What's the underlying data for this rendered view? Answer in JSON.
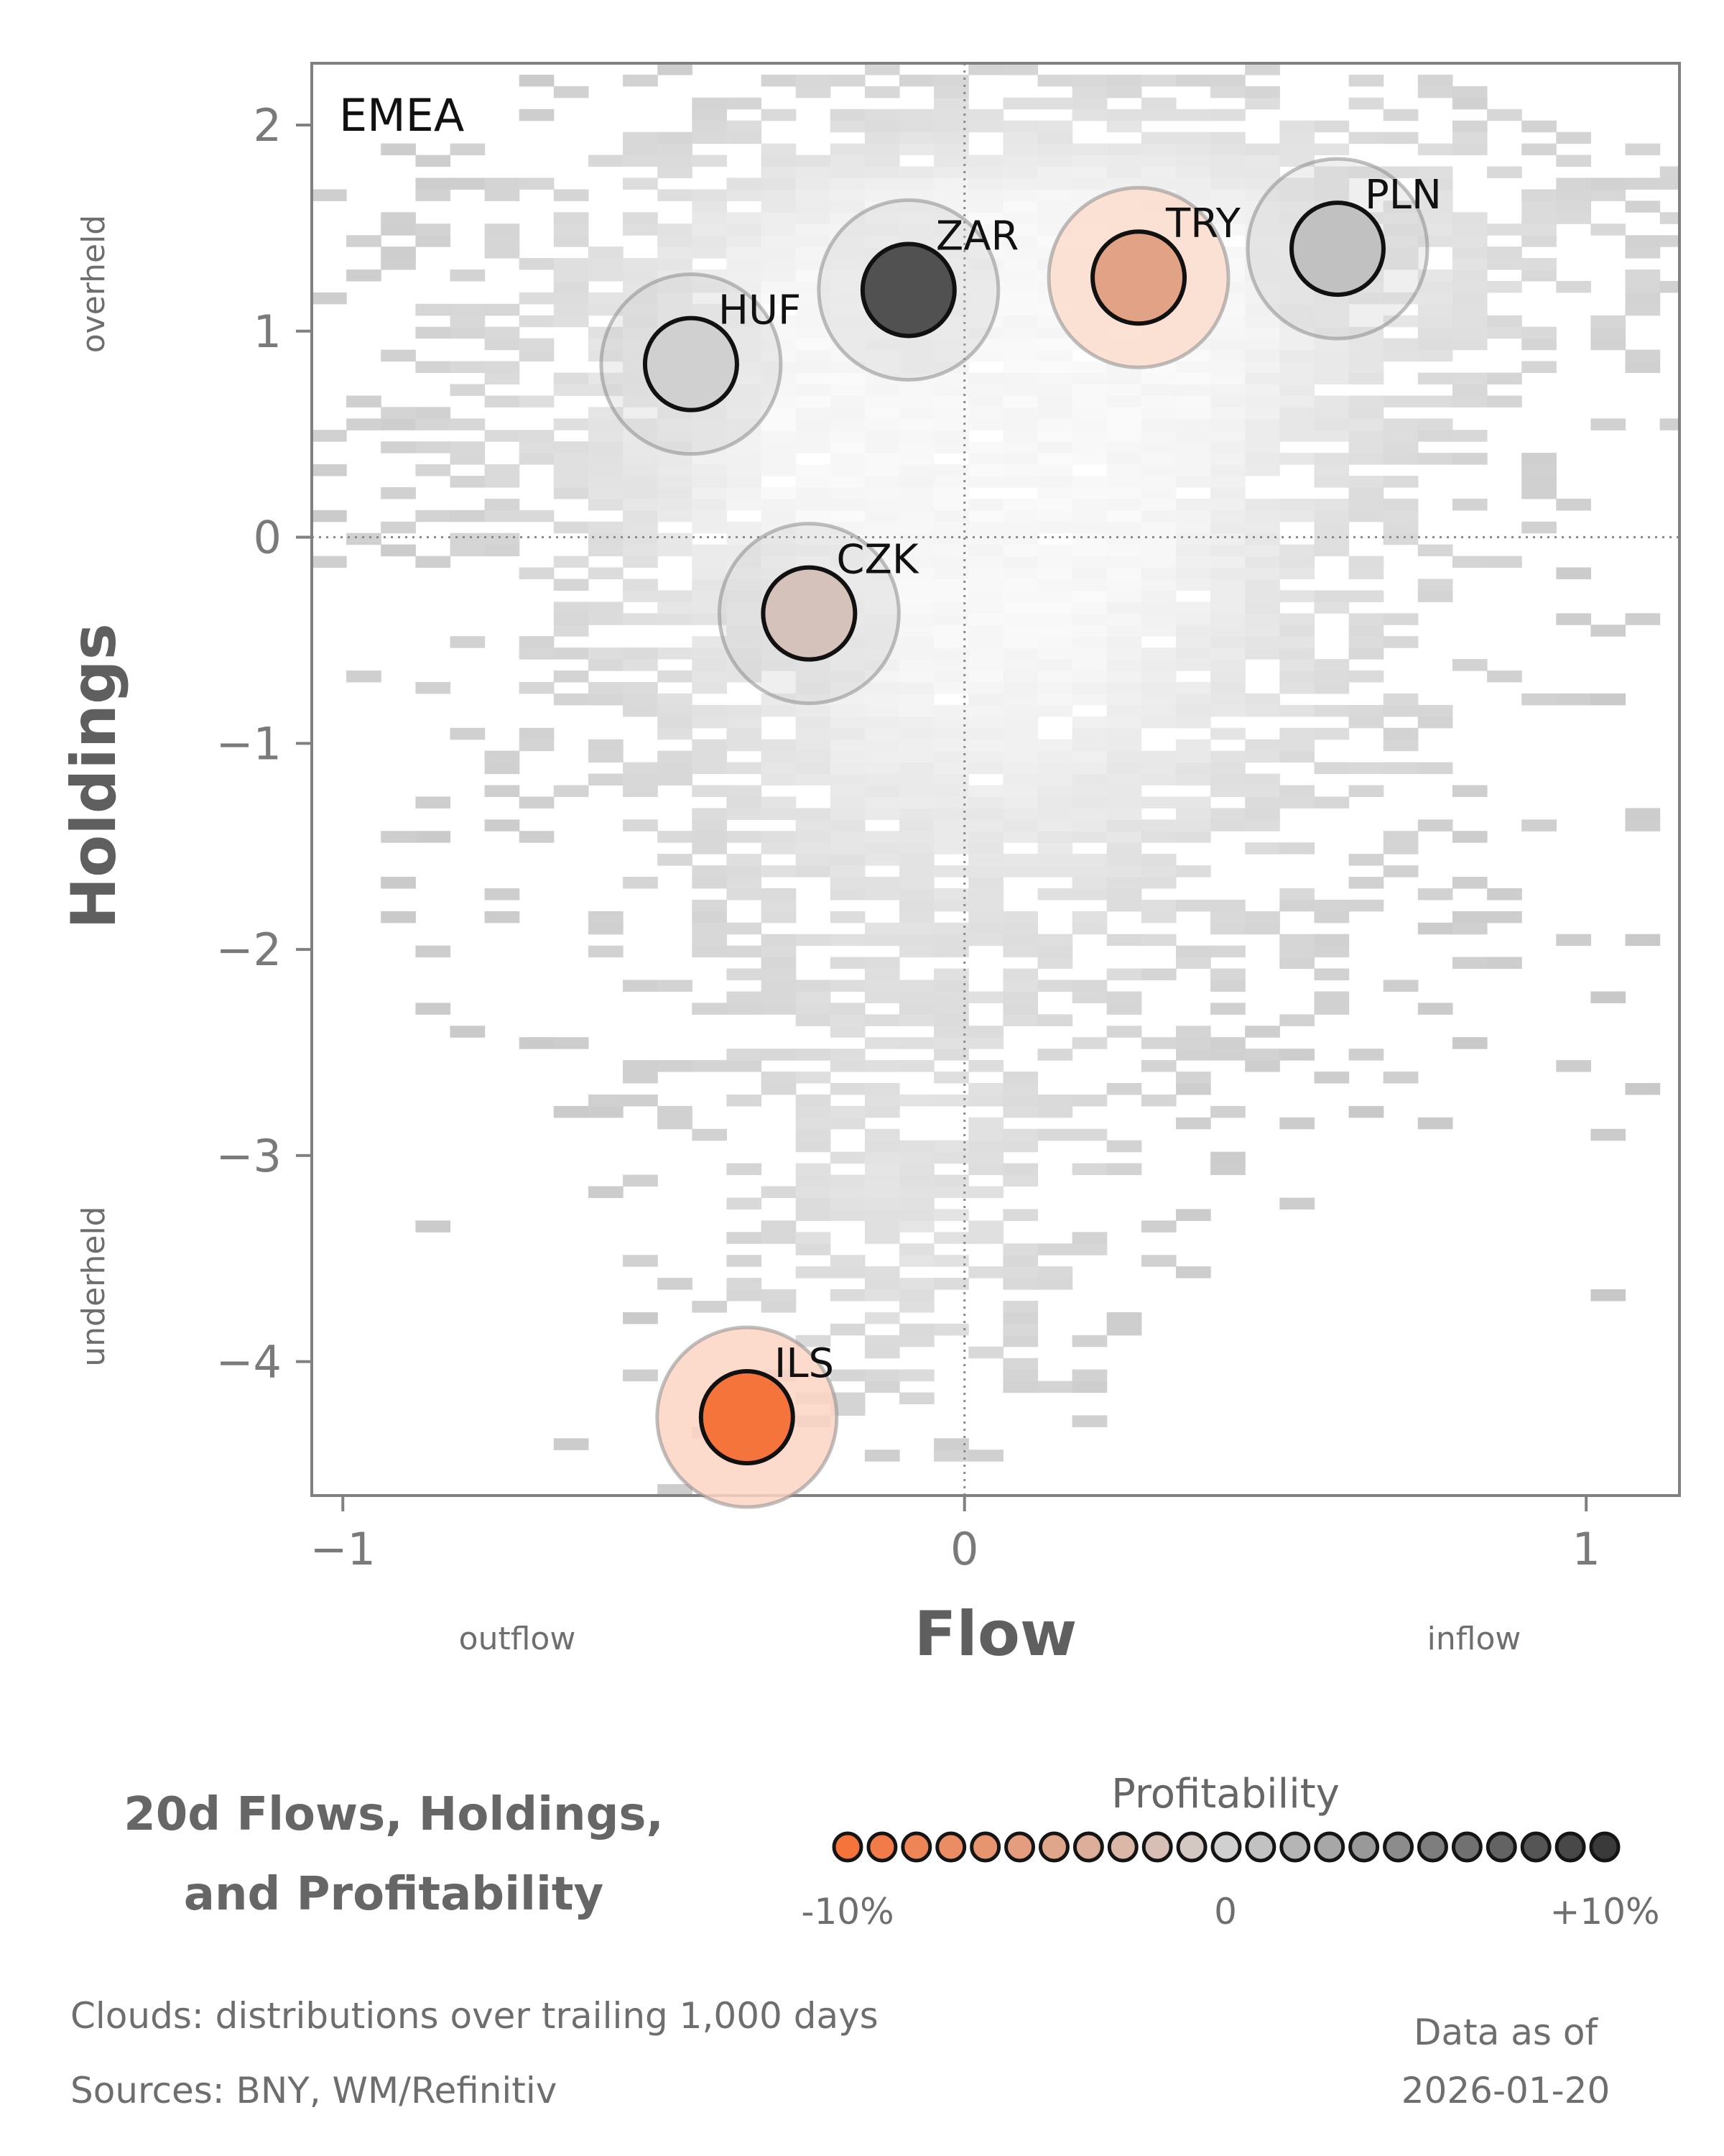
{
  "chart_data": {
    "type": "scatter",
    "title": "20d Flows, Holdings, and Profitability",
    "title_lines": [
      "20d Flows, Holdings,",
      "and Profitability"
    ],
    "panel_label": "EMEA",
    "xlabel": "Flow",
    "ylabel": "Holdings",
    "x_notes": {
      "left": "outflow",
      "right": "inflow"
    },
    "y_notes": {
      "top": "overheld",
      "bottom": "underheld"
    },
    "xlim": [
      -1.05,
      1.15
    ],
    "ylim": [
      -4.65,
      2.3
    ],
    "x_ticks": [
      -1,
      0,
      1
    ],
    "x_tick_labels": [
      "−1",
      "0",
      "1"
    ],
    "y_ticks": [
      2,
      1,
      0,
      -1,
      -2,
      -3,
      -4
    ],
    "y_tick_labels": [
      "2",
      "1",
      "0",
      "−1",
      "−2",
      "−3",
      "−4"
    ],
    "reference_lines": {
      "x": 0,
      "y": 0,
      "style": "dotted"
    },
    "grid": false,
    "background": "grey density cloud of trailing 1,000 days",
    "points": [
      {
        "label": "ZAR",
        "x": -0.09,
        "y": 1.2,
        "profitability": 0.085
      },
      {
        "label": "TRY",
        "x": 0.28,
        "y": 1.26,
        "profitability": -0.05
      },
      {
        "label": "PLN",
        "x": 0.6,
        "y": 1.4,
        "profitability": 0.01
      },
      {
        "label": "HUF",
        "x": -0.44,
        "y": 0.84,
        "profitability": 0.0
      },
      {
        "label": "CZK",
        "x": -0.25,
        "y": -0.37,
        "profitability": -0.015
      },
      {
        "label": "ILS",
        "x": -0.35,
        "y": -4.27,
        "profitability": -0.1
      }
    ],
    "legend": {
      "title": "Profitability",
      "min_label": "-10%",
      "mid_label": "0",
      "max_label": "+10%",
      "range": [
        -0.1,
        0.1
      ],
      "swatches": 23,
      "colors": {
        "negative": "#f4743b",
        "neutral": "#d0d0d0",
        "positive": "#3a3a3a"
      }
    }
  },
  "footer": {
    "clouds_note": "Clouds:  distributions over trailing 1,000 days",
    "sources_note": "Sources:  BNY, WM/Refinitiv",
    "data_as_of_label": "Data as of",
    "data_as_of_date": "2026-01-20"
  }
}
